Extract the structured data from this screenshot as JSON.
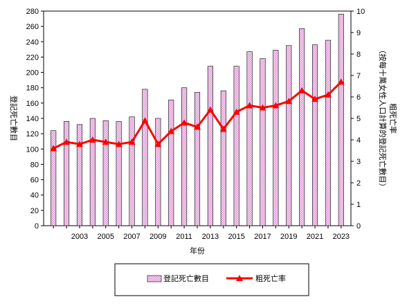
{
  "chart_data": {
    "type": "bar+line",
    "title": "",
    "x": [
      2001,
      2002,
      2003,
      2004,
      2005,
      2006,
      2007,
      2008,
      2009,
      2010,
      2011,
      2012,
      2013,
      2014,
      2015,
      2016,
      2017,
      2018,
      2019,
      2020,
      2021,
      2022,
      2023
    ],
    "x_tick_labels": [
      "2003",
      "2005",
      "2007",
      "2009",
      "2011",
      "2013",
      "2015",
      "2017",
      "2019",
      "2021",
      "2023"
    ],
    "xlabel": "年份",
    "ylabel_left": "登記死亡數目",
    "ylabel_right_main": "粗死亡率",
    "ylabel_right_sub": "（按每十萬女性人口計算的登記死亡數目）",
    "ylim_left": [
      0,
      280
    ],
    "ylim_right": [
      0,
      10
    ],
    "y_ticks_left": [
      "0",
      "20",
      "40",
      "60",
      "80",
      "100",
      "120",
      "140",
      "160",
      "180",
      "200",
      "220",
      "240",
      "260",
      "280"
    ],
    "y_ticks_right": [
      "0",
      "1",
      "2",
      "3",
      "4",
      "5",
      "6",
      "7",
      "8",
      "9",
      "10"
    ],
    "series": [
      {
        "name": "登記死亡數目",
        "type": "bar",
        "axis": "left",
        "color": "#e8b4e0",
        "values": [
          124,
          136,
          132,
          140,
          137,
          136,
          142,
          178,
          140,
          164,
          180,
          174,
          208,
          176,
          208,
          227,
          218,
          229,
          235,
          257,
          236,
          242,
          276
        ]
      },
      {
        "name": "粗死亡率",
        "type": "line",
        "axis": "right",
        "color": "#ff0000",
        "values": [
          3.6,
          3.9,
          3.8,
          4.0,
          3.9,
          3.8,
          3.9,
          4.9,
          3.8,
          4.4,
          4.8,
          4.6,
          5.4,
          4.5,
          5.3,
          5.6,
          5.5,
          5.6,
          5.8,
          6.3,
          5.9,
          6.1,
          6.7
        ]
      }
    ],
    "legend_position": "bottom",
    "grid": false
  }
}
